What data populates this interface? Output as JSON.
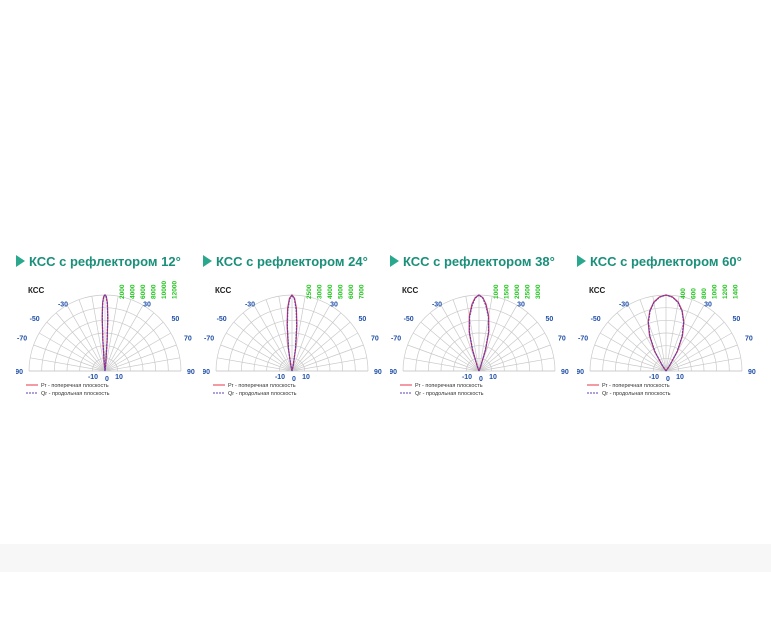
{
  "colors": {
    "title": "#1a8f7a",
    "marker": "#2aa88e",
    "grid": "#c9c9c9",
    "angle_label": "#1f4fa8",
    "candela_label": "#22c41e",
    "curve_pr": "#e8344a",
    "curve_qr": "#5b3fb8"
  },
  "chart_data": [
    {
      "type": "polar",
      "title": "КСС с рефлектором 12°",
      "corner_label": "КСС",
      "angle_ticks": [
        "-90",
        "-70",
        "-50",
        "-30",
        "-10",
        "0",
        "10",
        "30",
        "50",
        "70",
        "90"
      ],
      "radial_labels": [
        "2000",
        "4000",
        "6000",
        "8000",
        "10000",
        "12000"
      ],
      "max_value": 12000,
      "legend": [
        "Pr - поперечная плоскость",
        "Qr - продольная плоскость"
      ],
      "series": [
        {
          "name": "Pr - поперечная плоскость",
          "angles": [
            -90,
            -6,
            -4,
            -3,
            -2,
            -1,
            0,
            1,
            2,
            3,
            4,
            6,
            90
          ],
          "values": [
            0,
            1200,
            5000,
            8500,
            10800,
            11800,
            12000,
            11800,
            10800,
            8500,
            5000,
            1200,
            0
          ]
        },
        {
          "name": "Qr - продольная плоскость",
          "angles": [
            -90,
            -6,
            -4,
            -3,
            -2,
            -1,
            0,
            1,
            2,
            3,
            4,
            6,
            90
          ],
          "values": [
            0,
            1000,
            4600,
            8200,
            10600,
            11700,
            12000,
            11700,
            10600,
            8200,
            4600,
            1000,
            0
          ]
        }
      ]
    },
    {
      "type": "polar",
      "title": "КСС с рефлектором 24°",
      "corner_label": "КСС",
      "angle_ticks": [
        "-90",
        "-70",
        "-50",
        "-30",
        "-10",
        "0",
        "10",
        "30",
        "50",
        "70",
        "90"
      ],
      "radial_labels": [
        "2500",
        "3000",
        "4000",
        "5000",
        "6000",
        "7000"
      ],
      "max_value": 7000,
      "legend": [
        "Pr - поперечная плоскость",
        "Qr - продольная плоскость"
      ],
      "series": [
        {
          "name": "Pr - поперечная плоскость",
          "angles": [
            -90,
            -12,
            -9,
            -6,
            -4,
            -2,
            0,
            2,
            4,
            6,
            9,
            12,
            90
          ],
          "values": [
            0,
            600,
            2200,
            4300,
            5800,
            6700,
            7000,
            6700,
            5800,
            4300,
            2200,
            600,
            0
          ]
        },
        {
          "name": "Qr - продольная плоскость",
          "angles": [
            -90,
            -12,
            -9,
            -6,
            -4,
            -2,
            0,
            2,
            4,
            6,
            9,
            12,
            90
          ],
          "values": [
            0,
            500,
            2000,
            4100,
            5600,
            6600,
            7000,
            6600,
            5600,
            4100,
            2000,
            500,
            0
          ]
        }
      ]
    },
    {
      "type": "polar",
      "title": "КСС с рефлектором 38°",
      "corner_label": "КСС",
      "angle_ticks": [
        "-90",
        "-70",
        "-50",
        "-30",
        "-10",
        "0",
        "10",
        "30",
        "50",
        "70",
        "90"
      ],
      "radial_labels": [
        "1000",
        "1500",
        "2000",
        "2500",
        "3000"
      ],
      "max_value": 3000,
      "legend": [
        "Pr - поперечная плоскость",
        "Qr - продольная плоскость"
      ],
      "series": [
        {
          "name": "Pr - поперечная плоскость",
          "angles": [
            -90,
            -20,
            -17,
            -14,
            -10,
            -6,
            -3,
            0,
            3,
            6,
            10,
            14,
            17,
            20,
            90
          ],
          "values": [
            0,
            200,
            900,
            1600,
            2200,
            2650,
            2900,
            3000,
            2900,
            2650,
            2200,
            1600,
            900,
            200,
            0
          ]
        },
        {
          "name": "Qr - продольная плоскость",
          "angles": [
            -90,
            -20,
            -17,
            -14,
            -10,
            -6,
            -3,
            0,
            3,
            6,
            10,
            14,
            17,
            20,
            90
          ],
          "values": [
            0,
            180,
            850,
            1550,
            2150,
            2600,
            2880,
            3000,
            2880,
            2600,
            2150,
            1550,
            850,
            180,
            0
          ]
        }
      ]
    },
    {
      "type": "polar",
      "title": "КСС с рефлектором 60°",
      "corner_label": "КСС",
      "angle_ticks": [
        "-90",
        "-70",
        "-50",
        "-30",
        "-10",
        "0",
        "10",
        "30",
        "50",
        "70",
        "90"
      ],
      "radial_labels": [
        "400",
        "600",
        "800",
        "1000",
        "1200",
        "1400"
      ],
      "max_value": 1400,
      "legend": [
        "Pr - поперечная плоскость",
        "Qr - продольная плоскость"
      ],
      "series": [
        {
          "name": "Pr - поперечная плоскость",
          "angles": [
            -90,
            -34,
            -30,
            -25,
            -20,
            -15,
            -10,
            -5,
            0,
            5,
            10,
            15,
            20,
            25,
            30,
            34,
            90
          ],
          "values": [
            0,
            120,
            420,
            720,
            960,
            1150,
            1290,
            1370,
            1400,
            1370,
            1290,
            1150,
            960,
            720,
            420,
            120,
            0
          ]
        },
        {
          "name": "Qr - продольная плоскость",
          "angles": [
            -90,
            -34,
            -30,
            -25,
            -20,
            -15,
            -10,
            -5,
            0,
            5,
            10,
            15,
            20,
            25,
            30,
            34,
            90
          ],
          "values": [
            0,
            100,
            400,
            700,
            950,
            1140,
            1280,
            1365,
            1400,
            1365,
            1280,
            1140,
            950,
            700,
            400,
            100,
            0
          ]
        }
      ]
    }
  ]
}
